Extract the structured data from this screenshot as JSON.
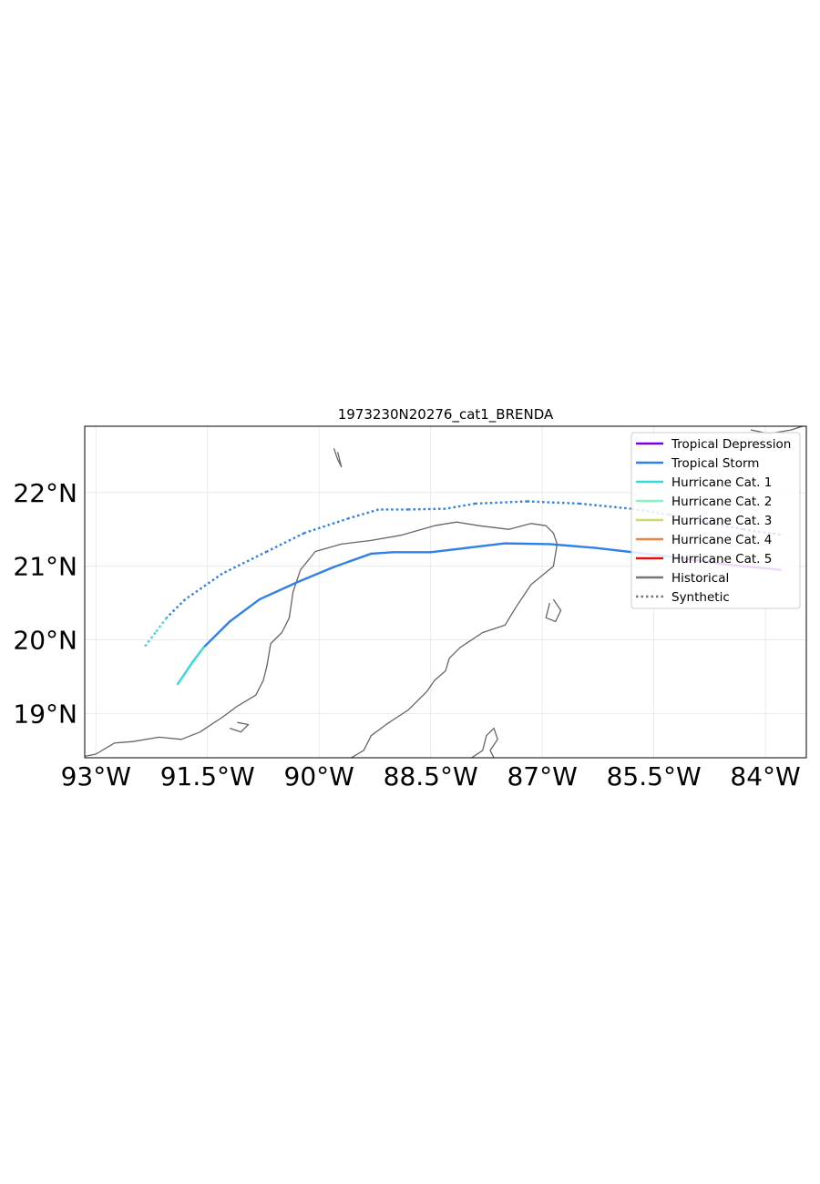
{
  "map": {
    "title": "1973230N20276_cat1_BRENDA",
    "extent": {
      "lon_min": -93.15,
      "lon_max": -83.45,
      "lat_min": 18.4,
      "lat_max": 22.9
    },
    "xticks": [
      {
        "lon": -93.0,
        "label": "93°W"
      },
      {
        "lon": -91.5,
        "label": "91.5°W"
      },
      {
        "lon": -90.0,
        "label": "90°W"
      },
      {
        "lon": -88.5,
        "label": "88.5°W"
      },
      {
        "lon": -87.0,
        "label": "87°W"
      },
      {
        "lon": -85.5,
        "label": "85.5°W"
      },
      {
        "lon": -84.0,
        "label": "84°W"
      }
    ],
    "yticks": [
      {
        "lat": 19.0,
        "label": "19°N"
      },
      {
        "lat": 20.0,
        "label": "20°N"
      },
      {
        "lat": 21.0,
        "label": "21°N"
      },
      {
        "lat": 22.0,
        "label": "22°N"
      }
    ],
    "grid": true,
    "colors": {
      "tropical_depression": "#7b00e0",
      "tropical_storm": "#2f80e8",
      "hurricane_cat_1": "#38d8d8",
      "hurricane_cat_2": "#80f8c0",
      "hurricane_cat_3": "#d0d870",
      "hurricane_cat_4": "#f08040",
      "hurricane_cat_5": "#e01010",
      "historical": "#777777",
      "synthetic": "#777777",
      "coastline": "#666666"
    },
    "legend": {
      "placement": "top-right",
      "entries": [
        {
          "label": "Tropical Depression",
          "color": "#7b00e0",
          "style": "solid"
        },
        {
          "label": "Tropical Storm",
          "color": "#2f80e8",
          "style": "solid"
        },
        {
          "label": "Hurricane Cat. 1",
          "color": "#38d8d8",
          "style": "solid"
        },
        {
          "label": "Hurricane Cat. 2",
          "color": "#80f8c0",
          "style": "solid"
        },
        {
          "label": "Hurricane Cat. 3",
          "color": "#d0d870",
          "style": "solid"
        },
        {
          "label": "Hurricane Cat. 4",
          "color": "#f08040",
          "style": "solid"
        },
        {
          "label": "Hurricane Cat. 5",
          "color": "#e01010",
          "style": "solid"
        },
        {
          "label": "Historical",
          "color": "#777777",
          "style": "solid"
        },
        {
          "label": "Synthetic",
          "color": "#777777",
          "style": "dotted"
        }
      ]
    },
    "tracks": [
      {
        "kind": "historical",
        "points": [
          {
            "lon": -83.8,
            "lat": 20.95,
            "cat": "tropical_depression"
          },
          {
            "lon": -84.5,
            "lat": 21.02,
            "cat": "tropical_depression"
          },
          {
            "lon": -85.2,
            "lat": 21.12,
            "cat": "tropical_depression"
          },
          {
            "lon": -85.7,
            "lat": 21.18,
            "cat": "tropical_storm"
          },
          {
            "lon": -86.3,
            "lat": 21.25,
            "cat": "tropical_storm"
          },
          {
            "lon": -86.9,
            "lat": 21.3,
            "cat": "tropical_storm"
          },
          {
            "lon": -87.5,
            "lat": 21.31,
            "cat": "tropical_storm"
          },
          {
            "lon": -88.0,
            "lat": 21.25,
            "cat": "tropical_storm"
          },
          {
            "lon": -88.5,
            "lat": 21.19,
            "cat": "tropical_storm"
          },
          {
            "lon": -89.0,
            "lat": 21.19,
            "cat": "tropical_storm"
          },
          {
            "lon": -89.3,
            "lat": 21.17,
            "cat": "tropical_storm"
          },
          {
            "lon": -89.8,
            "lat": 20.99,
            "cat": "tropical_storm"
          },
          {
            "lon": -90.3,
            "lat": 20.78,
            "cat": "tropical_storm"
          },
          {
            "lon": -90.8,
            "lat": 20.55,
            "cat": "tropical_storm"
          },
          {
            "lon": -91.2,
            "lat": 20.25,
            "cat": "tropical_storm"
          },
          {
            "lon": -91.55,
            "lat": 19.9,
            "cat": "tropical_storm"
          },
          {
            "lon": -91.7,
            "lat": 19.7,
            "cat": "hurricane_cat_1"
          },
          {
            "lon": -91.8,
            "lat": 19.55,
            "cat": "hurricane_cat_1"
          },
          {
            "lon": -91.9,
            "lat": 19.4,
            "cat": "hurricane_cat_1"
          }
        ]
      },
      {
        "kind": "synthetic",
        "points": [
          {
            "lon": -83.8,
            "lat": 21.43,
            "cat": "tropical_depression"
          },
          {
            "lon": -84.3,
            "lat": 21.5,
            "cat": "tropical_depression"
          },
          {
            "lon": -84.8,
            "lat": 21.6,
            "cat": "tropical_depression"
          },
          {
            "lon": -85.3,
            "lat": 21.7,
            "cat": "tropical_storm"
          },
          {
            "lon": -85.8,
            "lat": 21.78,
            "cat": "tropical_storm"
          },
          {
            "lon": -86.5,
            "lat": 21.85,
            "cat": "tropical_storm"
          },
          {
            "lon": -87.2,
            "lat": 21.88,
            "cat": "tropical_storm"
          },
          {
            "lon": -87.9,
            "lat": 21.85,
            "cat": "tropical_storm"
          },
          {
            "lon": -88.3,
            "lat": 21.78,
            "cat": "tropical_storm"
          },
          {
            "lon": -88.8,
            "lat": 21.77,
            "cat": "tropical_storm"
          },
          {
            "lon": -89.2,
            "lat": 21.77,
            "cat": "tropical_storm"
          },
          {
            "lon": -89.6,
            "lat": 21.65,
            "cat": "tropical_storm"
          },
          {
            "lon": -90.2,
            "lat": 21.45,
            "cat": "tropical_storm"
          },
          {
            "lon": -90.7,
            "lat": 21.2,
            "cat": "tropical_storm"
          },
          {
            "lon": -91.3,
            "lat": 20.9,
            "cat": "tropical_storm"
          },
          {
            "lon": -91.8,
            "lat": 20.55,
            "cat": "tropical_storm"
          },
          {
            "lon": -92.05,
            "lat": 20.3,
            "cat": "tropical_storm"
          },
          {
            "lon": -92.2,
            "lat": 20.1,
            "cat": "hurricane_cat_1"
          },
          {
            "lon": -92.35,
            "lat": 19.9,
            "cat": "hurricane_cat_1"
          }
        ]
      }
    ],
    "coastlines": [
      [
        [
          -89.6,
          18.38
        ],
        [
          -89.4,
          18.5
        ],
        [
          -89.3,
          18.7
        ],
        [
          -89.1,
          18.85
        ],
        [
          -88.95,
          18.95
        ],
        [
          -88.8,
          19.05
        ],
        [
          -88.55,
          19.3
        ],
        [
          -88.45,
          19.45
        ],
        [
          -88.3,
          19.58
        ],
        [
          -88.25,
          19.75
        ],
        [
          -88.1,
          19.9
        ],
        [
          -87.8,
          20.1
        ],
        [
          -87.5,
          20.2
        ],
        [
          -87.35,
          20.45
        ],
        [
          -87.15,
          20.75
        ],
        [
          -86.85,
          21.0
        ],
        [
          -86.8,
          21.3
        ],
        [
          -86.85,
          21.45
        ],
        [
          -86.95,
          21.55
        ],
        [
          -87.15,
          21.58
        ],
        [
          -87.45,
          21.5
        ],
        [
          -87.85,
          21.55
        ],
        [
          -88.15,
          21.6
        ],
        [
          -88.45,
          21.55
        ],
        [
          -88.9,
          21.42
        ],
        [
          -89.3,
          21.35
        ],
        [
          -89.7,
          21.3
        ],
        [
          -90.05,
          21.2
        ],
        [
          -90.25,
          20.95
        ],
        [
          -90.35,
          20.65
        ],
        [
          -90.4,
          20.3
        ],
        [
          -90.5,
          20.1
        ],
        [
          -90.65,
          19.95
        ],
        [
          -90.7,
          19.65
        ],
        [
          -90.75,
          19.45
        ],
        [
          -90.85,
          19.25
        ],
        [
          -91.1,
          19.1
        ],
        [
          -91.3,
          18.95
        ],
        [
          -91.45,
          18.85
        ],
        [
          -91.6,
          18.75
        ],
        [
          -91.85,
          18.65
        ],
        [
          -92.15,
          18.68
        ],
        [
          -92.5,
          18.62
        ],
        [
          -92.75,
          18.6
        ],
        [
          -93.0,
          18.45
        ],
        [
          -93.15,
          18.42
        ]
      ],
      [
        [
          -87.95,
          18.4
        ],
        [
          -87.8,
          18.5
        ],
        [
          -87.75,
          18.7
        ],
        [
          -87.65,
          18.8
        ],
        [
          -87.6,
          18.65
        ],
        [
          -87.7,
          18.5
        ],
        [
          -87.65,
          18.4
        ]
      ],
      [
        [
          -86.9,
          20.5
        ],
        [
          -86.95,
          20.3
        ],
        [
          -86.82,
          20.25
        ],
        [
          -86.75,
          20.4
        ],
        [
          -86.85,
          20.55
        ]
      ],
      [
        [
          -89.8,
          22.6
        ],
        [
          -89.75,
          22.45
        ],
        [
          -89.7,
          22.35
        ],
        [
          -89.75,
          22.55
        ]
      ],
      [
        [
          -91.2,
          18.8
        ],
        [
          -91.05,
          18.75
        ],
        [
          -90.95,
          18.85
        ],
        [
          -91.1,
          18.88
        ]
      ],
      [
        [
          -84.2,
          22.85
        ],
        [
          -83.95,
          22.8
        ],
        [
          -83.65,
          22.85
        ],
        [
          -83.5,
          22.9
        ]
      ]
    ]
  }
}
